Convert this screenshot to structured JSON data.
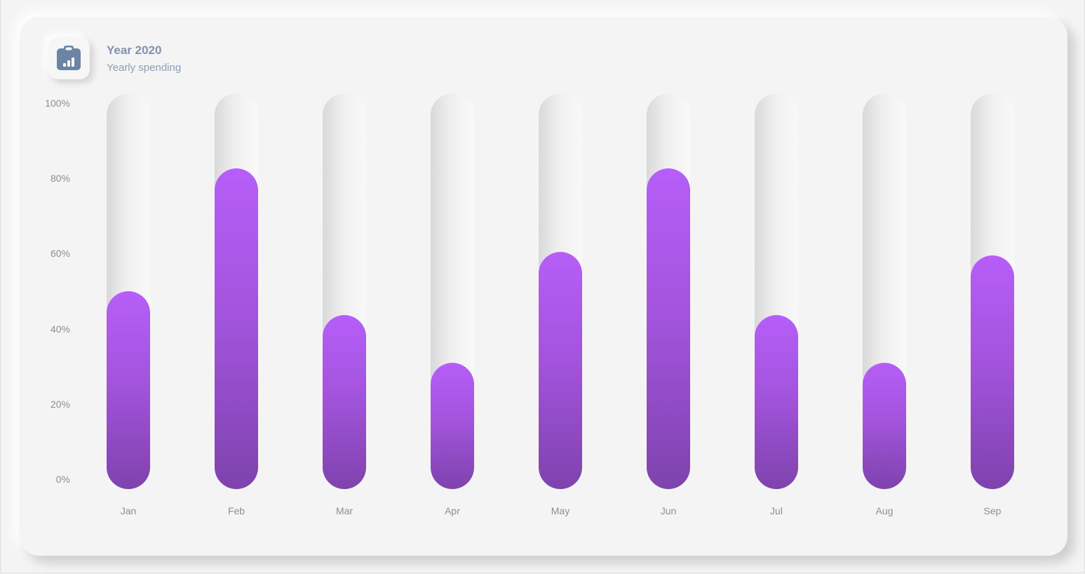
{
  "header": {
    "title": "Year 2020",
    "subtitle": "Yearly spending",
    "icon": "clipboard-chart-icon"
  },
  "colors": {
    "bar_top": "#b65ef8",
    "bar_bottom": "#7e43ad",
    "title": "#7f93ad",
    "subtitle": "#8aa0bb",
    "icon": "#6b84a3"
  },
  "chart_data": {
    "type": "bar",
    "title": "Year 2020",
    "subtitle": "Yearly spending",
    "categories": [
      "Jan",
      "Feb",
      "Mar",
      "Apr",
      "May",
      "Jun",
      "Jul",
      "Aug",
      "Sep"
    ],
    "values": [
      50,
      81,
      44,
      32,
      60,
      81,
      44,
      32,
      59
    ],
    "ylim": [
      0,
      100
    ],
    "yticks": [
      "0%",
      "20%",
      "40%",
      "60%",
      "80%",
      "100%"
    ],
    "ytick_values": [
      0,
      20,
      40,
      60,
      80,
      100
    ],
    "xlabel": "",
    "ylabel": "",
    "grid": false,
    "legend": "none"
  }
}
